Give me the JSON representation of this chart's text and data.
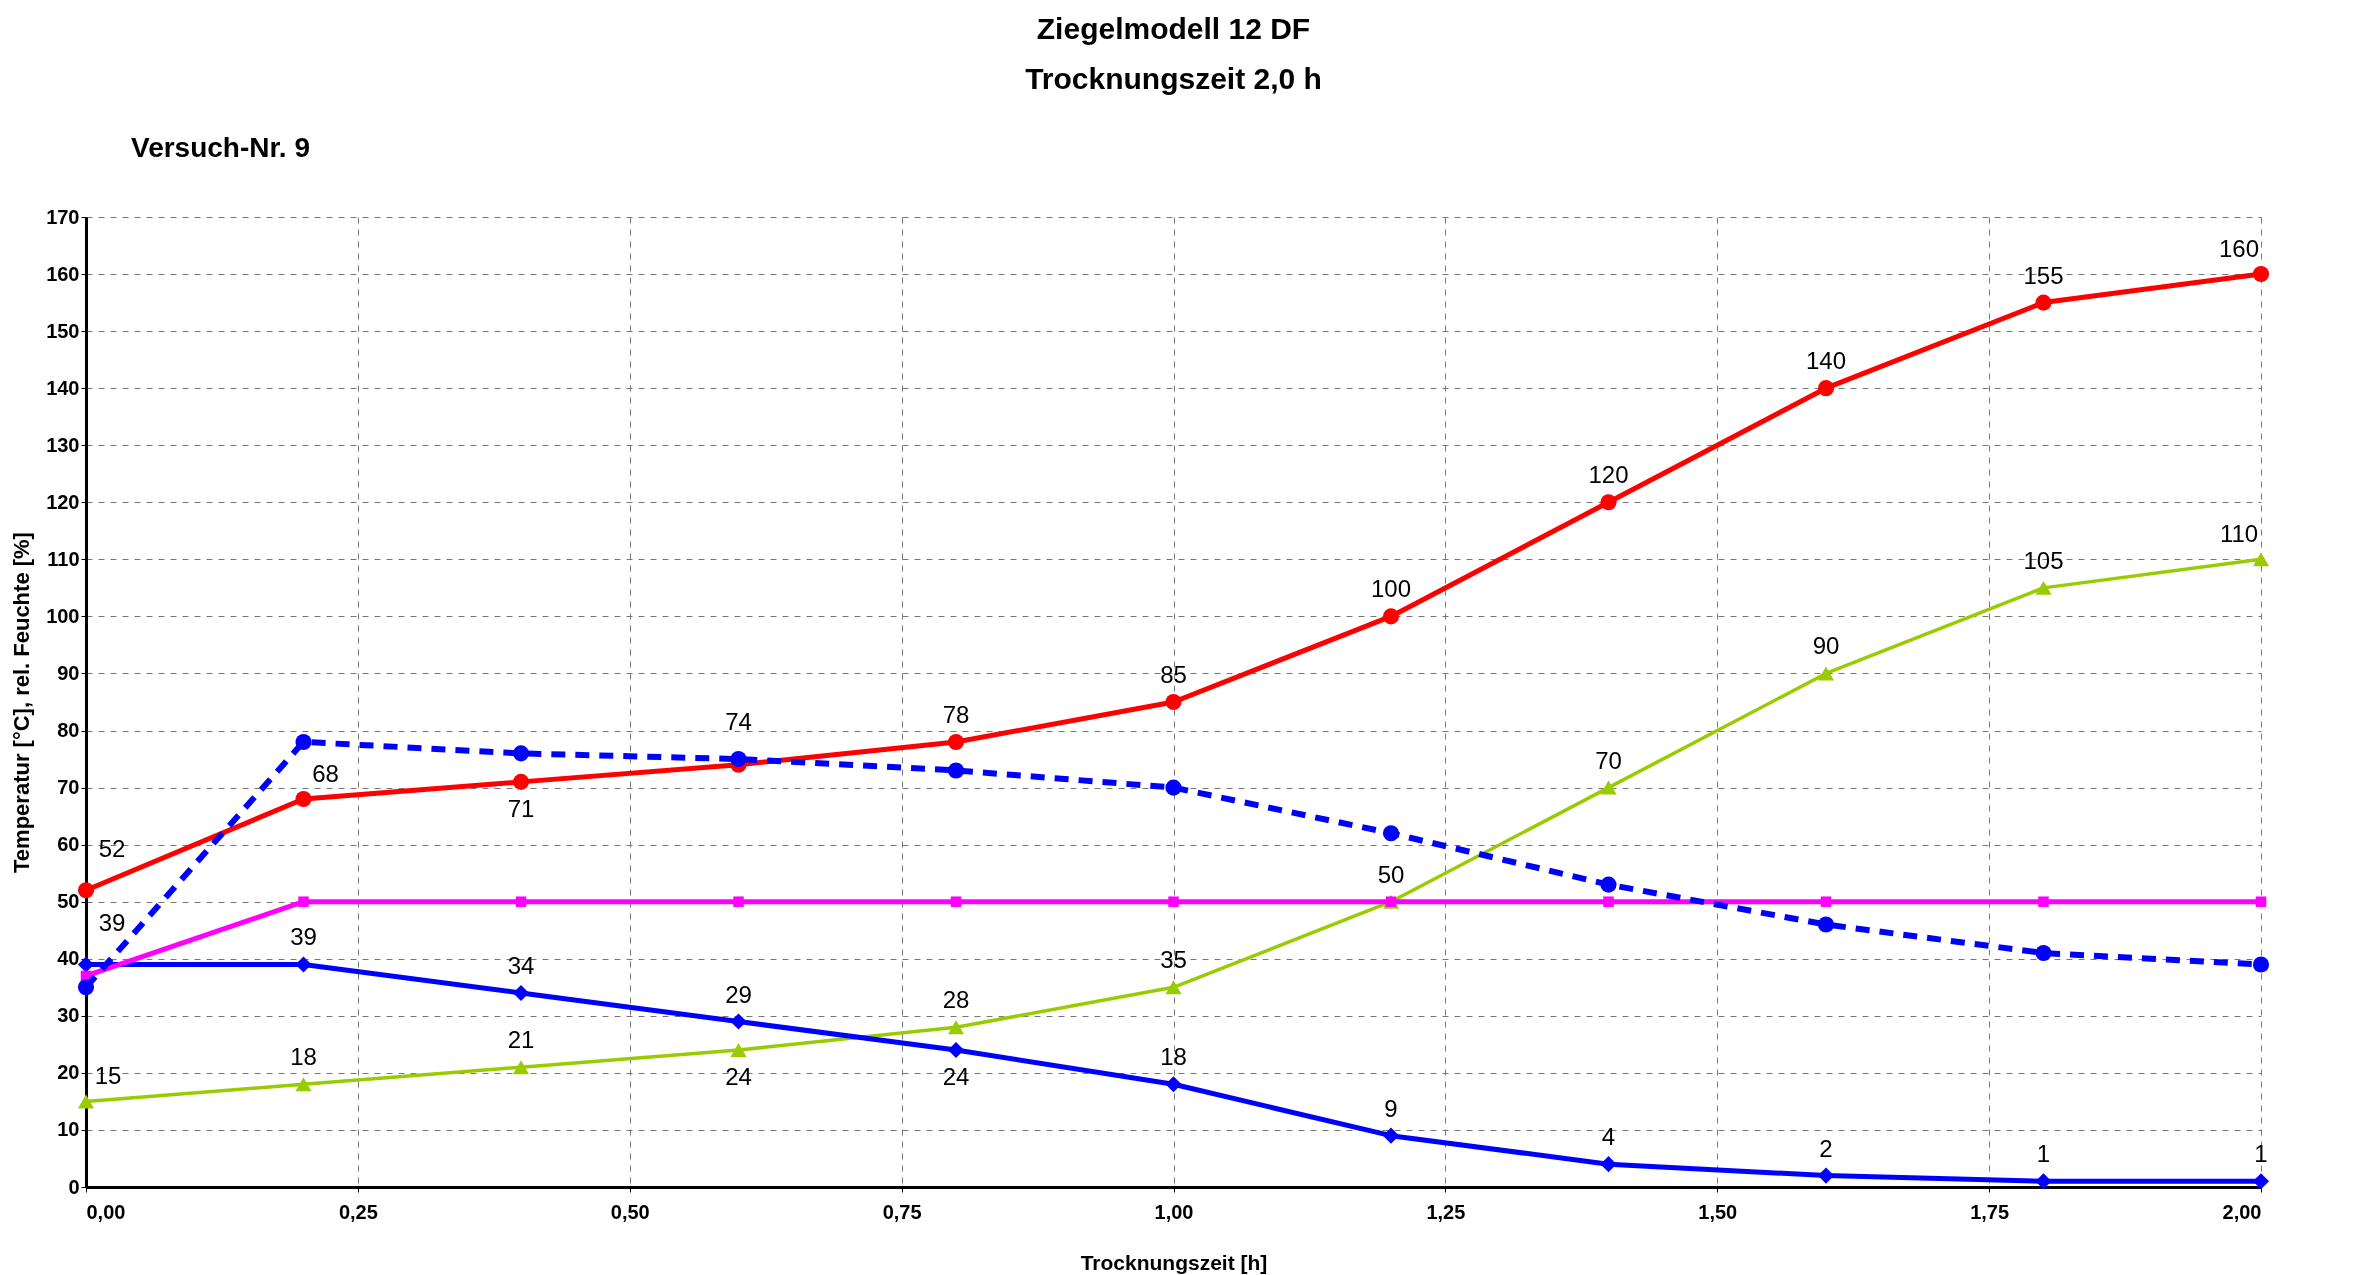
{
  "chart_data": {
    "type": "line",
    "title": "Ziegelmodell  12 DF",
    "subtitle": "Trocknungszeit    2,0 h",
    "xlabel": "Trocknungszeit [h]",
    "ylabel": "Temperatur [°C], rel. Feuchte [%]",
    "annotations": [
      "Versuch-Nr.  9"
    ],
    "x": [
      0,
      0.2,
      0.4,
      0.6,
      0.8,
      1.0,
      1.2,
      1.4,
      1.6,
      1.8,
      2.0
    ],
    "xlim": [
      0,
      2
    ],
    "ylim": [
      0,
      170
    ],
    "xticks": [
      {
        "value": 0,
        "label": "0,00"
      },
      {
        "value": 0.25,
        "label": "0,25"
      },
      {
        "value": 0.5,
        "label": "0,50"
      },
      {
        "value": 0.75,
        "label": "0,75"
      },
      {
        "value": 1,
        "label": "1,00"
      },
      {
        "value": 1.25,
        "label": "1,25"
      },
      {
        "value": 1.5,
        "label": "1,50"
      },
      {
        "value": 1.75,
        "label": "1,75"
      },
      {
        "value": 2,
        "label": "2,00"
      }
    ],
    "yticks": [
      0,
      10,
      20,
      30,
      40,
      50,
      60,
      70,
      80,
      90,
      100,
      110,
      120,
      130,
      140,
      150,
      160,
      170
    ],
    "grid": true,
    "series": [
      {
        "color": "#ff0000",
        "marker": "circle",
        "line_style": "solid",
        "values": [
          52,
          68,
          71,
          74,
          78,
          85,
          100,
          120,
          140,
          155,
          160
        ],
        "value_labels": [
          "52",
          "68",
          "71",
          "74",
          "78",
          "85",
          "100",
          "120",
          "140",
          "155",
          "160"
        ]
      },
      {
        "color": "#99cc00",
        "marker": "triangle",
        "line_style": "solid",
        "values": [
          15,
          18,
          21,
          24,
          28,
          35,
          50,
          70,
          90,
          105,
          110
        ],
        "value_labels": [
          "15",
          "18",
          "21",
          "24",
          "28",
          "35",
          "50",
          "70",
          "90",
          "105",
          "110"
        ]
      },
      {
        "color": "#0000ff",
        "marker": "diamond",
        "line_style": "solid",
        "values": [
          39,
          39,
          34,
          29,
          24,
          18,
          9,
          4,
          2,
          1,
          1
        ],
        "value_labels": [
          "39",
          "39",
          "34",
          "29",
          "24",
          "18",
          "9",
          "4",
          "2",
          "1",
          "1"
        ]
      },
      {
        "color": "#ff00ff",
        "marker": "square",
        "line_style": "solid",
        "values": [
          37,
          50,
          50,
          50,
          50,
          50,
          50,
          50,
          50,
          50,
          50
        ]
      },
      {
        "color": "#0000ff",
        "marker": "circle",
        "line_style": "dashed",
        "values": [
          35,
          78,
          76,
          75,
          73,
          70,
          62,
          53,
          46,
          41,
          39
        ]
      }
    ]
  }
}
